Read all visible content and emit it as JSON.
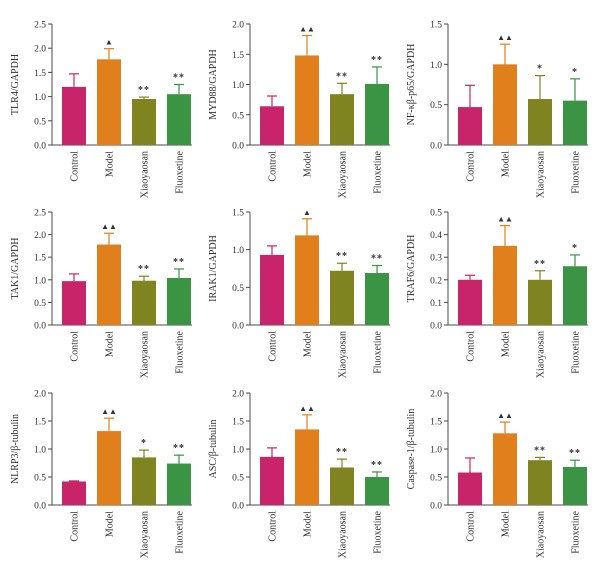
{
  "colors": {
    "Control": "#c8246a",
    "Model": "#e07f1c",
    "Xiaoyaosan": "#7f8420",
    "Fluoxetine": "#3a9444",
    "axis": "#4a4a4a",
    "marker": "#333333"
  },
  "chart_data": [
    {
      "type": "bar",
      "ylabel": "TLR4/GAPDH",
      "categories": [
        "Control",
        "Model",
        "Xiaoyaosan",
        "Fluoxetine"
      ],
      "values": [
        1.2,
        1.77,
        0.95,
        1.05
      ],
      "errors": [
        0.27,
        0.22,
        0.04,
        0.2
      ],
      "marks": [
        "",
        "▲",
        "**",
        "**"
      ],
      "ylim": [
        0,
        2.5
      ],
      "yticks": [
        "0.0",
        "0.5",
        "1.0",
        "1.5",
        "2.0",
        "2.5"
      ]
    },
    {
      "type": "bar",
      "ylabel": "MYD88/GAPDH",
      "categories": [
        "Control",
        "Model",
        "Xiaoyaosan",
        "Fluoxetine"
      ],
      "values": [
        0.64,
        1.48,
        0.84,
        1.01
      ],
      "errors": [
        0.17,
        0.33,
        0.18,
        0.28
      ],
      "marks": [
        "",
        "▲▲",
        "**",
        "**"
      ],
      "ylim": [
        0,
        2.0
      ],
      "yticks": [
        "0.0",
        "0.5",
        "1.0",
        "1.5",
        "2.0"
      ]
    },
    {
      "type": "bar",
      "ylabel": "NF-κβ-p65/GAPDH",
      "categories": [
        "Control",
        "Model",
        "Xiaoyaosan",
        "Fluoxetine"
      ],
      "values": [
        0.47,
        1.0,
        0.57,
        0.55
      ],
      "errors": [
        0.27,
        0.25,
        0.29,
        0.27
      ],
      "marks": [
        "",
        "▲▲",
        "*",
        "*"
      ],
      "ylim": [
        0,
        1.5
      ],
      "yticks": [
        "0.0",
        "0.5",
        "1.0",
        "1.5"
      ]
    },
    {
      "type": "bar",
      "ylabel": "TAK1/GAPDH",
      "categories": [
        "Control",
        "Model",
        "Xiaoyaosan",
        "Fluoxetine"
      ],
      "values": [
        0.97,
        1.78,
        0.98,
        1.04
      ],
      "errors": [
        0.16,
        0.25,
        0.1,
        0.2
      ],
      "marks": [
        "",
        "▲▲",
        "**",
        "**"
      ],
      "ylim": [
        0,
        2.5
      ],
      "yticks": [
        "0.0",
        "0.5",
        "1.0",
        "1.5",
        "2.0",
        "2.5"
      ]
    },
    {
      "type": "bar",
      "ylabel": "IRAK1/GAPDH",
      "categories": [
        "Control",
        "Model",
        "Xiaoyaosan",
        "Fluoxetine"
      ],
      "values": [
        0.93,
        1.19,
        0.72,
        0.69
      ],
      "errors": [
        0.12,
        0.22,
        0.1,
        0.1
      ],
      "marks": [
        "",
        "▲",
        "**",
        "**"
      ],
      "ylim": [
        0,
        1.5
      ],
      "yticks": [
        "0.0",
        "0.5",
        "1.0",
        "1.5"
      ]
    },
    {
      "type": "bar",
      "ylabel": "TRAF6/GAPDH",
      "categories": [
        "Control",
        "Model",
        "Xiaoyaosan",
        "Fluoxetine"
      ],
      "values": [
        0.2,
        0.35,
        0.2,
        0.26
      ],
      "errors": [
        0.02,
        0.09,
        0.04,
        0.05
      ],
      "marks": [
        "",
        "▲▲",
        "**",
        "*"
      ],
      "ylim": [
        0,
        0.5
      ],
      "yticks": [
        "0.0",
        "0.1",
        "0.2",
        "0.3",
        "0.4",
        "0.5"
      ]
    },
    {
      "type": "bar",
      "ylabel": "NLRP3/β-tubulin",
      "categories": [
        "Control",
        "Model",
        "Xiaoyaosan",
        "Fluoxetine"
      ],
      "values": [
        0.42,
        1.32,
        0.85,
        0.74
      ],
      "errors": [
        0.01,
        0.23,
        0.13,
        0.15
      ],
      "marks": [
        "",
        "▲▲",
        "*",
        "**"
      ],
      "ylim": [
        0,
        2.0
      ],
      "yticks": [
        "0.0",
        "0.5",
        "1.0",
        "1.5",
        "2.0"
      ]
    },
    {
      "type": "bar",
      "ylabel": "ASC/β-tubulin",
      "categories": [
        "Control",
        "Model",
        "Xiaoyaosan",
        "Fluoxetine"
      ],
      "values": [
        0.86,
        1.35,
        0.67,
        0.5
      ],
      "errors": [
        0.16,
        0.26,
        0.15,
        0.09
      ],
      "marks": [
        "",
        "▲▲",
        "**",
        "**"
      ],
      "ylim": [
        0,
        2.0
      ],
      "yticks": [
        "0.0",
        "0.5",
        "1.0",
        "1.5",
        "2.0"
      ]
    },
    {
      "type": "bar",
      "ylabel": "Caspase-1/β-tubulin",
      "categories": [
        "Control",
        "Model",
        "Xiaoyaosan",
        "Fluoxetine"
      ],
      "values": [
        0.58,
        1.28,
        0.8,
        0.68
      ],
      "errors": [
        0.26,
        0.2,
        0.05,
        0.12
      ],
      "marks": [
        "",
        "▲▲",
        "**",
        "**"
      ],
      "ylim": [
        0,
        2.0
      ],
      "yticks": [
        "0.0",
        "0.5",
        "1.0",
        "1.5",
        "2.0"
      ]
    }
  ]
}
